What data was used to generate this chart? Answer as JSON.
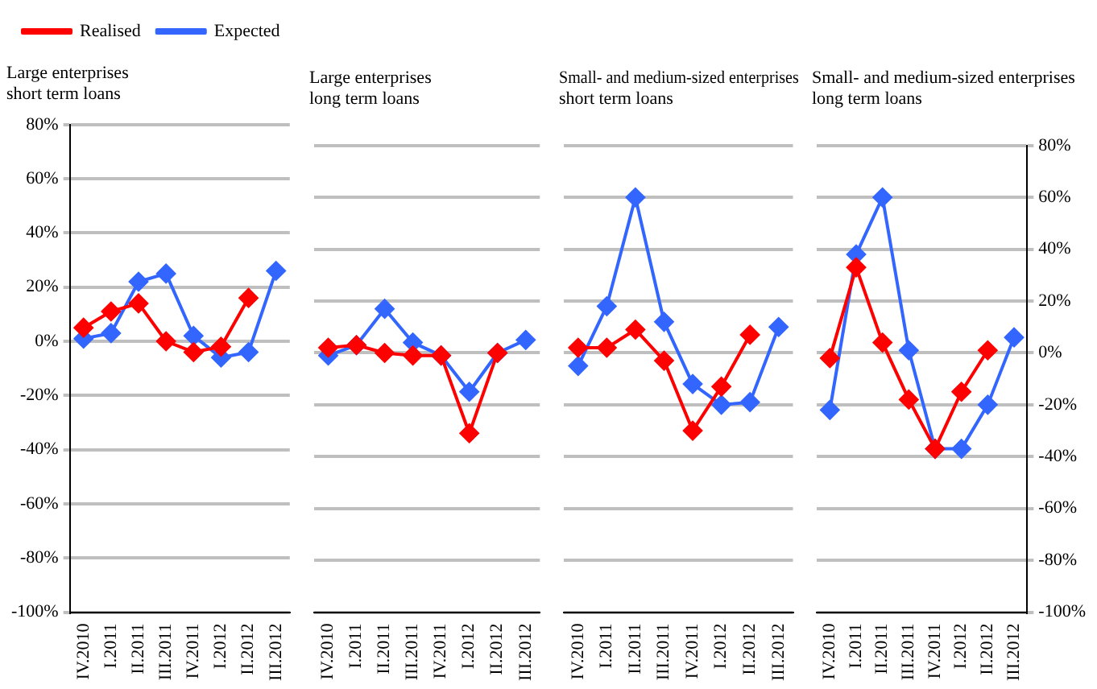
{
  "chart_data": [
    {
      "type": "line",
      "title": "Large enterprises\nshort term loans",
      "categories": [
        "IV.2010",
        "I.2011",
        "II.2011",
        "III.2011",
        "IV.2011",
        "I.2012",
        "II.2012",
        "III.2012"
      ],
      "series": [
        {
          "name": "Realised",
          "color": "#ff0000",
          "values": [
            5,
            11,
            14,
            0,
            -4,
            -2,
            16,
            null
          ]
        },
        {
          "name": "Expected",
          "color": "#3366ff",
          "values": [
            1,
            3,
            22,
            25,
            2,
            -6,
            -4,
            26
          ]
        }
      ],
      "ylim": [
        -100,
        80
      ],
      "yticks": [
        {
          "value": -100,
          "label": "-100%"
        },
        {
          "value": -80,
          "label": "-80%"
        },
        {
          "value": -60,
          "label": "-60%"
        },
        {
          "value": -40,
          "label": "-40%"
        },
        {
          "value": -20,
          "label": "-20%"
        },
        {
          "value": 0,
          "label": "0%"
        },
        {
          "value": 20,
          "label": "20%"
        },
        {
          "value": 40,
          "label": "40%"
        },
        {
          "value": 60,
          "label": "60%"
        },
        {
          "value": 80,
          "label": "80%"
        }
      ],
      "grid": "y",
      "legend": "top left",
      "marker": "diamond",
      "line_style": "solid"
    },
    {
      "type": "line",
      "title": "Large enterprises\nlong term loans",
      "categories": [
        "IV.2010",
        "I.2011",
        "II.2011",
        "III.2011",
        "IV.2011",
        "I.2012",
        "II.2012",
        "III.2012"
      ],
      "series": [
        {
          "color": "#ff0000",
          "values": [
            2,
            3,
            0,
            -1,
            -1,
            -31,
            0,
            null
          ]
        },
        {
          "color": "#3366ff",
          "values": [
            -1,
            3,
            17,
            4,
            -1,
            -15,
            0,
            5
          ]
        }
      ],
      "ylim": [
        -100,
        80
      ],
      "yticks": [
        -100,
        -80,
        -60,
        -40,
        -20,
        0,
        20,
        40,
        60,
        80
      ],
      "grid": "y",
      "tick_labels": "x",
      "marker": "diamond",
      "line_style": "solid"
    },
    {
      "type": "line",
      "title": "Small- and medium-sized enterprises\nshort term loans",
      "categories": [
        "IV.2010",
        "I.2011",
        "II.2011",
        "III.2011",
        "IV.2011",
        "I.2012",
        "II.2012",
        "III.2012"
      ],
      "series": [
        {
          "color": "#ff0000",
          "values": [
            2,
            2,
            9,
            -3,
            -30,
            -13,
            7,
            null
          ]
        },
        {
          "color": "#3366ff",
          "values": [
            -5,
            18,
            60,
            12,
            -12,
            -20,
            -19,
            10
          ]
        }
      ],
      "ylim": [
        -100,
        80
      ],
      "yticks": [
        -100,
        -80,
        -60,
        -40,
        -20,
        0,
        20,
        40,
        60,
        80
      ],
      "grid": "y",
      "tick_labels": "x",
      "marker": "diamond",
      "line_style": "solid"
    },
    {
      "type": "line",
      "title": "Small- and medium-sized enterprises\nlong term loans",
      "categories": [
        "IV.2010",
        "I.2011",
        "II.2011",
        "III.2011",
        "IV.2011",
        "I.2012",
        "II.2012",
        "III.2012"
      ],
      "series": [
        {
          "color": "#ff0000",
          "axis": "y2",
          "values": [
            -2,
            33,
            4,
            -18,
            -37,
            -15,
            1,
            null
          ]
        },
        {
          "color": "#3366ff",
          "axis": "y2",
          "values": [
            -22,
            38,
            60,
            1,
            -37,
            -37,
            -20,
            6
          ]
        }
      ],
      "y2lim": [
        -100,
        80
      ],
      "y2ticks": [
        {
          "value": -100,
          "label": "-100%"
        },
        {
          "value": -80,
          "label": "-80%"
        },
        {
          "value": -60,
          "label": "-60%"
        },
        {
          "value": -40,
          "label": "-40%"
        },
        {
          "value": -20,
          "label": "-20%"
        },
        {
          "value": 0,
          "label": "0%"
        },
        {
          "value": 20,
          "label": "20%"
        },
        {
          "value": 40,
          "label": "40%"
        },
        {
          "value": 60,
          "label": "60%"
        },
        {
          "value": 80,
          "label": "80%"
        }
      ],
      "grid": "y",
      "marker": "diamond",
      "line_style": "solid"
    }
  ]
}
